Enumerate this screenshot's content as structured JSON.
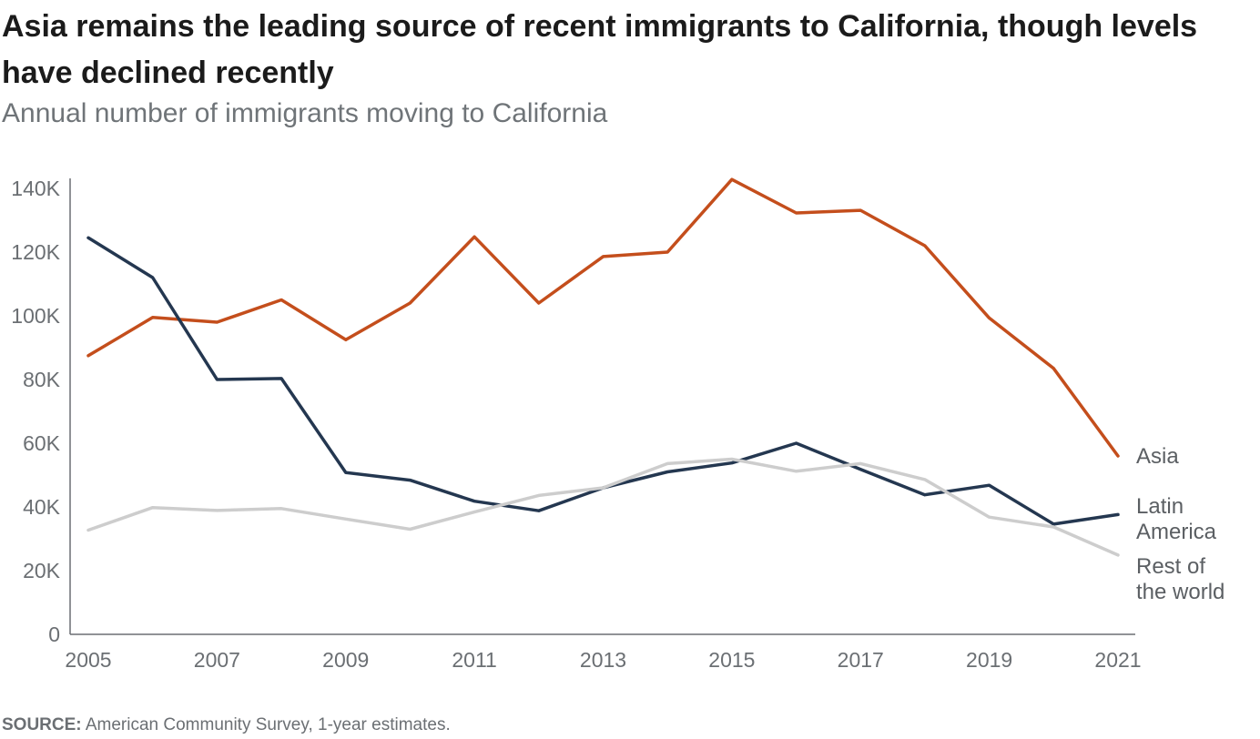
{
  "title": "Asia remains the leading source of recent immigrants to California, though levels have declined recently",
  "subtitle": "Annual number of immigrants moving to California",
  "source": {
    "label": "SOURCE:",
    "text": " American Community Survey, 1-year estimates."
  },
  "colors": {
    "asia": "#c44e1c",
    "latin_america": "#243750",
    "rest_of_world": "#cdcdcd",
    "axis": "#6b6f73"
  },
  "chart_data": {
    "type": "line",
    "title": "Asia remains the leading source of recent immigrants to California, though levels have declined recently",
    "subtitle": "Annual number of immigrants moving to California",
    "x": [
      2005,
      2006,
      2007,
      2008,
      2009,
      2010,
      2011,
      2012,
      2013,
      2014,
      2015,
      2016,
      2017,
      2018,
      2019,
      2020,
      2021
    ],
    "x_tick_labels": [
      "2005",
      "2007",
      "2009",
      "2011",
      "2013",
      "2015",
      "2017",
      "2019",
      "2021"
    ],
    "y_tick_labels": [
      "0",
      "20K",
      "40K",
      "60K",
      "80K",
      "100K",
      "120K",
      "140K"
    ],
    "ylim": [
      0,
      140000
    ],
    "grid": false,
    "legend": "inline labels at right end of lines",
    "series": [
      {
        "name": "Asia",
        "color": "#c44e1c",
        "values": [
          87500,
          99500,
          98000,
          105000,
          92500,
          104000,
          124800,
          104000,
          118600,
          120000,
          142800,
          132300,
          133100,
          122000,
          99300,
          83500,
          56000
        ]
      },
      {
        "name": "Latin America",
        "color": "#243750",
        "values": [
          124500,
          112000,
          80000,
          80300,
          50800,
          48400,
          41800,
          38800,
          46000,
          51000,
          53800,
          60000,
          51800,
          43800,
          46800,
          34600,
          37600
        ]
      },
      {
        "name": "Rest of the world",
        "color": "#cdcdcd",
        "values": [
          32700,
          39800,
          38900,
          39500,
          36200,
          33000,
          38400,
          43600,
          46000,
          53600,
          55000,
          51200,
          53600,
          48600,
          36800,
          33700,
          24900
        ]
      }
    ],
    "series_labels": [
      {
        "lines": [
          "Asia"
        ]
      },
      {
        "lines": [
          "Latin",
          "America"
        ]
      },
      {
        "lines": [
          "Rest of",
          "the world"
        ]
      }
    ]
  }
}
